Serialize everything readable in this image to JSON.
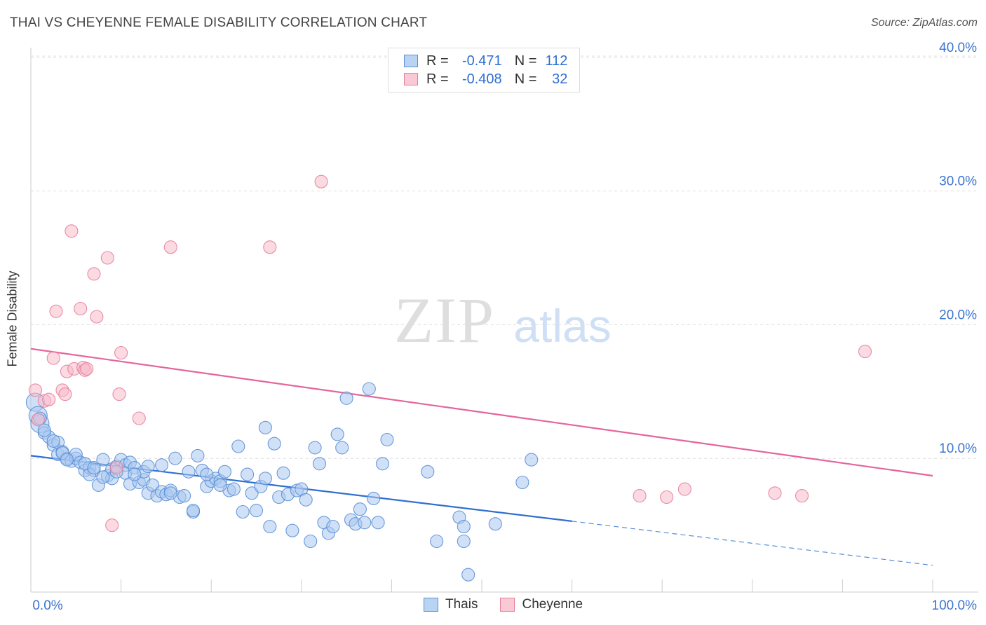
{
  "header": {
    "title": "THAI VS CHEYENNE FEMALE DISABILITY CORRELATION CHART",
    "source": "Source: ZipAtlas.com"
  },
  "watermark": {
    "zip": "ZIP",
    "atlas": "atlas"
  },
  "legend": {
    "rows": [
      {
        "r_label": "R =",
        "r_value": "-0.471",
        "n_label": "N =",
        "n_value": "112",
        "color": "#a9c8f0",
        "border": "#5b8fd6"
      },
      {
        "r_label": "R =",
        "r_value": "-0.408",
        "n_label": "N =",
        "n_value": "32",
        "color": "#f7bccb",
        "border": "#e57f9e"
      }
    ]
  },
  "bottom_legend": {
    "thais": "Thais",
    "cheyenne": "Cheyenne"
  },
  "chart_data": {
    "type": "scatter",
    "title": "THAI VS CHEYENNE FEMALE DISABILITY CORRELATION CHART",
    "xlabel": "",
    "ylabel": "Female Disability",
    "xlim": [
      0,
      100
    ],
    "ylim": [
      0,
      40
    ],
    "x_tick_labels": [
      "0.0%",
      "100.0%"
    ],
    "y_ticks": [
      10,
      20,
      30,
      40
    ],
    "y_tick_labels": [
      "10.0%",
      "20.0%",
      "30.0%",
      "40.0%"
    ],
    "grid": true,
    "legend_position": "top-center",
    "series": [
      {
        "name": "Thais",
        "color": "#a9c8f0",
        "edge": "#5b8fd6",
        "line_color": "#2f6fd0",
        "trend": {
          "x0": 0,
          "y0": 10.2,
          "x1": 60,
          "y1": 5.3,
          "x_dash_end": 100,
          "y_dash_end": 2.0
        },
        "points": [
          [
            0.5,
            14.2
          ],
          [
            0.8,
            13.2
          ],
          [
            1.0,
            12.6
          ],
          [
            1.5,
            11.9
          ],
          [
            2.0,
            11.6
          ],
          [
            2.5,
            11.0
          ],
          [
            3.0,
            10.3
          ],
          [
            3.0,
            11.2
          ],
          [
            3.5,
            10.5
          ],
          [
            4.0,
            10.0
          ],
          [
            4.5,
            9.8
          ],
          [
            5.0,
            10.0
          ],
          [
            5.0,
            10.3
          ],
          [
            5.5,
            9.7
          ],
          [
            6.0,
            9.1
          ],
          [
            6.5,
            9.3
          ],
          [
            7.0,
            9.1
          ],
          [
            6.5,
            8.8
          ],
          [
            7.5,
            8.0
          ],
          [
            8.0,
            9.9
          ],
          [
            8.5,
            8.7
          ],
          [
            9.0,
            9.2
          ],
          [
            9.0,
            8.5
          ],
          [
            9.5,
            9.4
          ],
          [
            10.0,
            9.9
          ],
          [
            10.5,
            9.5
          ],
          [
            10.5,
            8.9
          ],
          [
            11.0,
            9.7
          ],
          [
            11.0,
            8.1
          ],
          [
            11.5,
            9.3
          ],
          [
            12.0,
            8.2
          ],
          [
            12.5,
            8.4
          ],
          [
            12.5,
            9.0
          ],
          [
            13.0,
            9.4
          ],
          [
            13.0,
            7.4
          ],
          [
            13.5,
            8.0
          ],
          [
            14.0,
            7.2
          ],
          [
            14.5,
            7.5
          ],
          [
            14.5,
            9.5
          ],
          [
            15.0,
            7.3
          ],
          [
            15.5,
            7.6
          ],
          [
            16.0,
            10.0
          ],
          [
            16.5,
            7.1
          ],
          [
            17.0,
            7.2
          ],
          [
            17.5,
            9.0
          ],
          [
            18.0,
            6.0
          ],
          [
            18.0,
            6.1
          ],
          [
            18.5,
            10.2
          ],
          [
            19.0,
            9.1
          ],
          [
            19.5,
            7.9
          ],
          [
            20.0,
            8.3
          ],
          [
            20.5,
            8.5
          ],
          [
            21.0,
            8.3
          ],
          [
            21.5,
            9.0
          ],
          [
            22.0,
            7.6
          ],
          [
            22.5,
            7.7
          ],
          [
            23.0,
            10.9
          ],
          [
            23.5,
            6.0
          ],
          [
            24.0,
            8.8
          ],
          [
            24.5,
            7.4
          ],
          [
            25.0,
            6.1
          ],
          [
            25.5,
            7.9
          ],
          [
            26.0,
            12.3
          ],
          [
            26.5,
            4.9
          ],
          [
            27.0,
            11.1
          ],
          [
            27.5,
            7.1
          ],
          [
            28.0,
            8.9
          ],
          [
            28.5,
            7.3
          ],
          [
            29.0,
            4.6
          ],
          [
            29.5,
            7.6
          ],
          [
            30.0,
            7.7
          ],
          [
            30.5,
            6.9
          ],
          [
            31.0,
            3.8
          ],
          [
            31.5,
            10.8
          ],
          [
            32.0,
            9.6
          ],
          [
            32.5,
            5.2
          ],
          [
            33.0,
            4.4
          ],
          [
            33.5,
            4.9
          ],
          [
            34.0,
            11.8
          ],
          [
            34.5,
            10.8
          ],
          [
            35.0,
            14.5
          ],
          [
            35.5,
            5.4
          ],
          [
            36.0,
            5.1
          ],
          [
            36.5,
            6.2
          ],
          [
            37.0,
            5.2
          ],
          [
            37.5,
            15.2
          ],
          [
            38.0,
            7.0
          ],
          [
            38.5,
            5.2
          ],
          [
            39.0,
            9.6
          ],
          [
            39.5,
            11.4
          ],
          [
            44.0,
            9.0
          ],
          [
            45.0,
            3.8
          ],
          [
            47.5,
            5.6
          ],
          [
            48.0,
            4.9
          ],
          [
            48.0,
            3.8
          ],
          [
            48.5,
            1.3
          ],
          [
            51.5,
            5.1
          ],
          [
            54.5,
            8.2
          ],
          [
            55.5,
            9.9
          ],
          [
            1.0,
            13.0
          ],
          [
            1.5,
            12.1
          ],
          [
            2.5,
            11.3
          ],
          [
            3.5,
            10.4
          ],
          [
            4.0,
            9.9
          ],
          [
            6.0,
            9.6
          ],
          [
            7.0,
            9.3
          ],
          [
            8.0,
            8.6
          ],
          [
            9.5,
            9.0
          ],
          [
            11.5,
            8.8
          ],
          [
            15.5,
            7.4
          ],
          [
            19.5,
            8.8
          ],
          [
            21.0,
            8.0
          ],
          [
            26.0,
            8.5
          ]
        ]
      },
      {
        "name": "Cheyenne",
        "color": "#f7bccb",
        "edge": "#e57f9e",
        "line_color": "#e5659a",
        "trend": {
          "x0": 0,
          "y0": 18.2,
          "x1": 100,
          "y1": 8.7
        },
        "points": [
          [
            0.5,
            15.1
          ],
          [
            0.8,
            12.9
          ],
          [
            1.5,
            14.3
          ],
          [
            2.0,
            14.4
          ],
          [
            2.5,
            17.5
          ],
          [
            2.8,
            21.0
          ],
          [
            3.5,
            15.1
          ],
          [
            3.8,
            14.8
          ],
          [
            4.0,
            16.5
          ],
          [
            4.5,
            27.0
          ],
          [
            4.8,
            16.7
          ],
          [
            5.5,
            21.2
          ],
          [
            5.8,
            16.8
          ],
          [
            6.0,
            16.6
          ],
          [
            6.2,
            16.7
          ],
          [
            7.0,
            23.8
          ],
          [
            7.3,
            20.6
          ],
          [
            8.5,
            25.0
          ],
          [
            9.0,
            5.0
          ],
          [
            9.5,
            9.3
          ],
          [
            9.8,
            14.8
          ],
          [
            10.0,
            17.9
          ],
          [
            12.0,
            13.0
          ],
          [
            15.5,
            25.8
          ],
          [
            26.5,
            25.8
          ],
          [
            32.2,
            30.7
          ],
          [
            67.5,
            7.2
          ],
          [
            70.5,
            7.1
          ],
          [
            72.5,
            7.7
          ],
          [
            82.5,
            7.4
          ],
          [
            85.5,
            7.2
          ],
          [
            92.5,
            18.0
          ]
        ]
      }
    ]
  }
}
